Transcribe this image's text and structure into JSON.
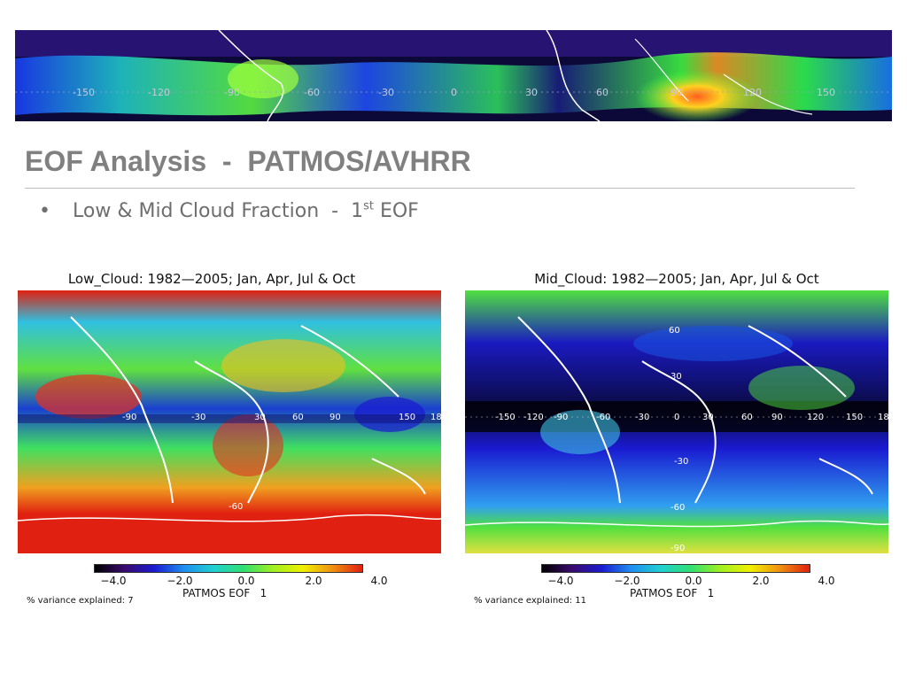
{
  "slide": {
    "title": "EOF Analysis  -  PATMOS/AVHRR",
    "bullet_text": "Low & Mid Cloud Fraction  -  1",
    "bullet_sup": "st",
    "bullet_tail": " EOF"
  },
  "banner": {
    "lon_labels": [
      "-150",
      "-120",
      "-90",
      "-60",
      "-30",
      "0",
      "30",
      "60",
      "90",
      "120",
      "150"
    ]
  },
  "panels": [
    {
      "title": "Low_Cloud: 1982—2005; Jan, Apr, Jul & Oct",
      "variance": "% variance explained: 7",
      "eof_label": "PATMOS EOF   1",
      "ticks": [
        "−4.0",
        "−2.0",
        "0.0",
        "2.0",
        "4.0"
      ],
      "map_labels": [
        "-90",
        "-30",
        "30",
        "60",
        "90",
        "150",
        "18",
        "-60"
      ]
    },
    {
      "title": "Mid_Cloud: 1982—2005; Jan, Apr, Jul & Oct",
      "variance": "% variance explained: 11",
      "eof_label": "PATMOS EOF   1",
      "ticks": [
        "−4.0",
        "−2.0",
        "0.0",
        "2.0",
        "4.0"
      ],
      "map_labels": [
        "60",
        "30",
        "-150",
        "-120",
        "-90",
        "-60",
        "-30",
        "0",
        "30",
        "60",
        "90",
        "120",
        "150",
        "18",
        "-30",
        "-60",
        "-90"
      ]
    }
  ],
  "colors": {
    "colorbar": [
      "#000000",
      "#3a0a6e",
      "#1a1ad0",
      "#1e8ff0",
      "#20d0d0",
      "#30e070",
      "#a0f020",
      "#f0f000",
      "#f09010",
      "#e02010"
    ]
  }
}
